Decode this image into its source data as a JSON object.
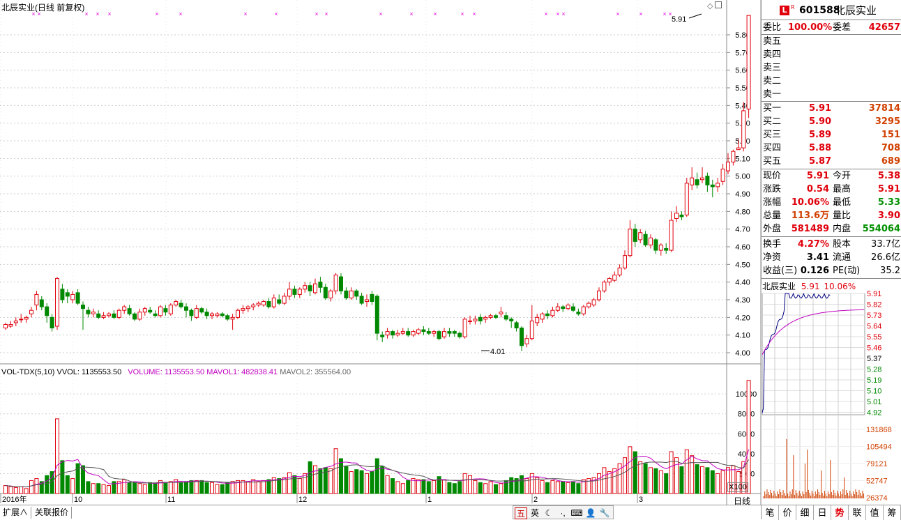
{
  "stock": {
    "code": "601588",
    "name": "北辰实业",
    "title": "北辰实业(日线 前复权)",
    "badge_l": "L",
    "badge_r": "R"
  },
  "quote": {
    "weibi_label": "委比",
    "weibi": "100.00%",
    "weicha_label": "委差",
    "weicha": "42657",
    "sells": [
      {
        "label": "卖五"
      },
      {
        "label": "卖四"
      },
      {
        "label": "卖三"
      },
      {
        "label": "卖二"
      },
      {
        "label": "卖一"
      }
    ],
    "buys": [
      {
        "label": "买一",
        "price": "5.91",
        "vol": "37814"
      },
      {
        "label": "买二",
        "price": "5.90",
        "vol": "3295"
      },
      {
        "label": "买三",
        "price": "5.89",
        "vol": "151"
      },
      {
        "label": "买四",
        "price": "5.88",
        "vol": "708"
      },
      {
        "label": "买五",
        "price": "5.87",
        "vol": "689"
      }
    ],
    "stats": [
      {
        "l1": "现价",
        "v1": "5.91",
        "l2": "今开",
        "v2": "5.38"
      },
      {
        "l1": "涨跌",
        "v1": "0.54",
        "l2": "最高",
        "v2": "5.91"
      },
      {
        "l1": "涨幅",
        "v1": "10.06%",
        "l2": "最低",
        "v2": "5.33"
      },
      {
        "l1": "总量",
        "v1": "113.6万",
        "l2": "量比",
        "v2": "3.90"
      },
      {
        "l1": "外盘",
        "v1": "581489",
        "l2": "内盘",
        "v2": "554064"
      }
    ],
    "stats2": [
      {
        "l1": "换手",
        "v1": "4.27%",
        "l2": "股本",
        "v2": "33.7亿"
      },
      {
        "l1": "净资",
        "v1": "3.41",
        "l2": "流通",
        "v2": "26.6亿"
      },
      {
        "l1": "收益(三)",
        "v1": "0.126",
        "l2": "PE(动)",
        "v2": "35.2"
      }
    ]
  },
  "mini": {
    "name": "北辰实业",
    "price": "5.91",
    "pct": "10.06%",
    "price_ticks": [
      "5.91",
      "5.82",
      "5.73",
      "5.64",
      "5.55",
      "5.46",
      "5.37",
      "5.28",
      "5.19",
      "5.10",
      "5.01",
      "4.92"
    ],
    "vol_ticks": [
      "131868",
      "105494",
      "79121",
      "52747",
      "26374"
    ]
  },
  "kline": {
    "y_ticks": [
      "5.80",
      "5.70",
      "5.60",
      "5.50",
      "5.40",
      "5.30",
      "5.20",
      "5.10",
      "5.00",
      "4.90",
      "4.80",
      "4.70",
      "4.60",
      "4.50",
      "4.40",
      "4.30",
      "4.20",
      "4.10",
      "4.00"
    ],
    "high_label": "5.91",
    "low_label": "4.01",
    "x_labels": [
      "2016年",
      "10",
      "11",
      "12",
      "1",
      "2",
      "3"
    ],
    "period": "日线"
  },
  "volume": {
    "indicator": "VOL-TDX(5,10)",
    "vvol": "VVOL: 1135553.50",
    "volume": "VOLUME: 1135553.50",
    "mavol1": "MAVOL1: 482838.41",
    "mavol2": "MAVOL2: 355564.00",
    "y_ticks": [
      "10000",
      "8000",
      "6000",
      "4000",
      "2000"
    ],
    "unit": "X100"
  },
  "bottom": {
    "tab1": "扩展∧",
    "tab2": "关联报价",
    "tools": [
      "五",
      "英",
      "☾",
      "·,",
      "⌨",
      "👤",
      "🔧"
    ]
  },
  "right_tabs": [
    "笔",
    "价",
    "细",
    "日",
    "势",
    "联",
    "值",
    "筹"
  ],
  "colors": {
    "up": "#e0000b",
    "down": "#008800",
    "ma1": "#c000c0",
    "ma2": "#555555"
  }
}
